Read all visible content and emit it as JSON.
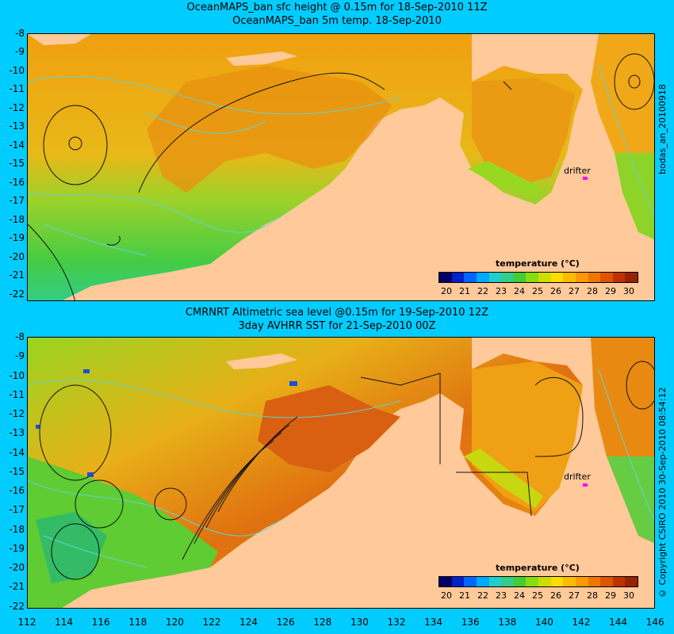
{
  "top": {
    "title_line1": "OceanMAPS_ban sfc height @ 0.15m for 18-Sep-2010 11Z",
    "title_line2": "OceanMAPS_ban 5m temp. 18-Sep-2010",
    "side_label": "bodas_an_20100918"
  },
  "bottom": {
    "title_line1": "CMRNRT Altimetric sea level  @0.15m  for 19-Sep-2010 12Z",
    "title_line2": "3day AVHRR SST for 21-Sep-2010 00Z",
    "side_label": "© Copyright CSIRO 2010    30-Sep-2010 08:54:12"
  },
  "lat_ticks": [
    "-8",
    "-9",
    "-10",
    "-11",
    "-12",
    "-13",
    "-14",
    "-15",
    "-16",
    "-17",
    "-18",
    "-19",
    "-20",
    "-21",
    "-22"
  ],
  "lon_ticks": [
    "112",
    "114",
    "116",
    "118",
    "120",
    "122",
    "124",
    "126",
    "128",
    "130",
    "132",
    "134",
    "136",
    "138",
    "140",
    "142",
    "144",
    "146"
  ],
  "colorbar": {
    "title": "temperature (°C)",
    "ticks": [
      "20",
      "21",
      "22",
      "23",
      "24",
      "25",
      "26",
      "27",
      "28",
      "29",
      "30"
    ],
    "colors": [
      "#000066",
      "#0022cc",
      "#0066ff",
      "#00aaff",
      "#22cccc",
      "#33cc88",
      "#44cc33",
      "#88dd11",
      "#ccdd00",
      "#ffdd00",
      "#ffbb00",
      "#ff9900",
      "#ee7700",
      "#dd5500",
      "#bb3300",
      "#992200"
    ]
  },
  "drifter_label": "drifter",
  "colors": {
    "background": "#00ccff",
    "land": "#ffc999",
    "contour": "#5fd4d4",
    "drifter": "#ff00ff"
  }
}
